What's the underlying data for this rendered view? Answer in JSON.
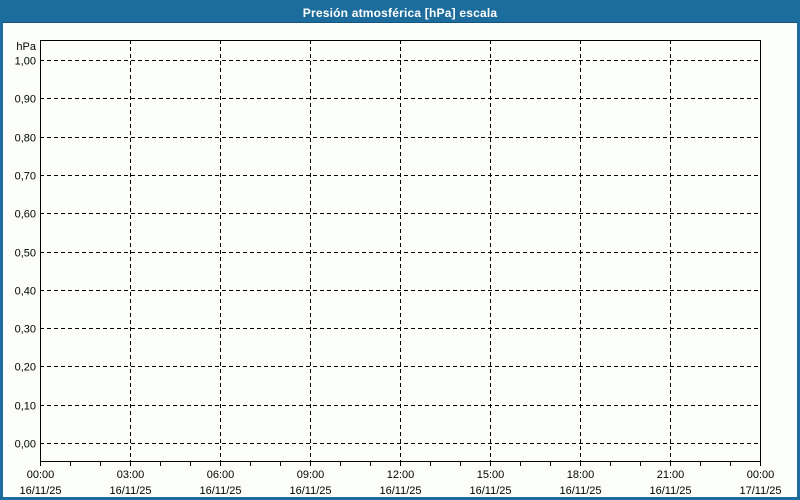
{
  "title_bar": {
    "title": "Presión atmosférica [hPa] escala"
  },
  "colors": {
    "frame_blue": "#1d6c9e",
    "background": "#fdfffd",
    "grid": "#000000",
    "axis": "#000000",
    "label_text": "#000000",
    "title_text": "#ffffff"
  },
  "chart_data": {
    "type": "line",
    "title": "Presión atmosférica [hPa] escala",
    "ylabel": "hPa",
    "xlabel": "",
    "ylim": [
      0,
      1
    ],
    "grid": true,
    "grid_style": "dashed",
    "legend": "none",
    "series": [],
    "y_ticks": [
      {
        "value": 1.0,
        "label": "1,00"
      },
      {
        "value": 0.9,
        "label": "0,90"
      },
      {
        "value": 0.8,
        "label": "0,80"
      },
      {
        "value": 0.7,
        "label": "0,70"
      },
      {
        "value": 0.6,
        "label": "0,60"
      },
      {
        "value": 0.5,
        "label": "0,50"
      },
      {
        "value": 0.4,
        "label": "0,40"
      },
      {
        "value": 0.3,
        "label": "0,30"
      },
      {
        "value": 0.2,
        "label": "0,20"
      },
      {
        "value": 0.1,
        "label": "0,10"
      },
      {
        "value": 0.0,
        "label": "0,00"
      }
    ],
    "x_axis": {
      "span_hours": 24,
      "minor_tick_every_hours": 1,
      "major_ticks": [
        {
          "hour": 0,
          "time": "00:00",
          "date": "16/11/25"
        },
        {
          "hour": 3,
          "time": "03:00",
          "date": "16/11/25"
        },
        {
          "hour": 6,
          "time": "06:00",
          "date": "16/11/25"
        },
        {
          "hour": 9,
          "time": "09:00",
          "date": "16/11/25"
        },
        {
          "hour": 12,
          "time": "12:00",
          "date": "16/11/25"
        },
        {
          "hour": 15,
          "time": "15:00",
          "date": "16/11/25"
        },
        {
          "hour": 18,
          "time": "18:00",
          "date": "16/11/25"
        },
        {
          "hour": 21,
          "time": "21:00",
          "date": "16/11/25"
        },
        {
          "hour": 24,
          "time": "00:00",
          "date": "17/11/25"
        }
      ]
    }
  }
}
